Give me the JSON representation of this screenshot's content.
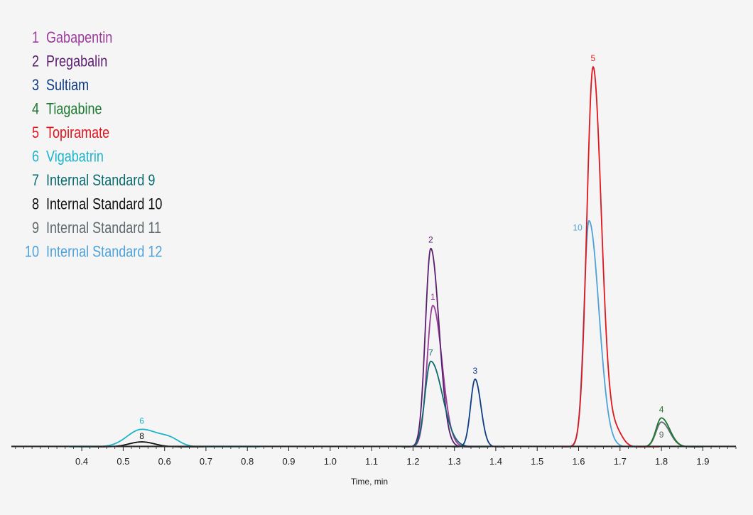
{
  "chart_data": {
    "type": "line",
    "title": "",
    "xlabel": "Time, min",
    "ylabel": "",
    "xlim": [
      0.23,
      1.98
    ],
    "ylim": [
      0,
      100
    ],
    "x_ticks": [
      "0.4",
      "0.5",
      "0.6",
      "0.7",
      "0.8",
      "0.9",
      "1.0",
      "1.1",
      "1.2",
      "1.3",
      "1.4",
      "1.5",
      "1.6",
      "1.7",
      "1.8",
      "1.9"
    ],
    "grid": false,
    "legend_position": "top-left",
    "legend": [
      {
        "number": "1",
        "name": "Gabapentin",
        "color": "#9b3d9b"
      },
      {
        "number": "2",
        "name": "Pregabalin",
        "color": "#5a1e6e"
      },
      {
        "number": "3",
        "name": "Sultiam",
        "color": "#0f3c82"
      },
      {
        "number": "4",
        "name": "Tiagabine",
        "color": "#1e7832"
      },
      {
        "number": "5",
        "name": "Topiramate",
        "color": "#e0161e"
      },
      {
        "number": "6",
        "name": "Vigabatrin",
        "color": "#1eb4c8"
      },
      {
        "number": "7",
        "name": "Internal Standard 9",
        "color": "#0a6a6e"
      },
      {
        "number": "8",
        "name": "Internal Standard 10",
        "color": "#111111"
      },
      {
        "number": "9",
        "name": "Internal Standard 11",
        "color": "#5f6a6e"
      },
      {
        "number": "10",
        "name": "Internal Standard 12",
        "color": "#4ea2d8"
      }
    ],
    "peaks": [
      {
        "label": "1",
        "x": 1.248,
        "height": 37.2,
        "color": "#9b3d9b"
      },
      {
        "label": "2",
        "x": 1.243,
        "height": 52.2,
        "color": "#5a1e6e"
      },
      {
        "label": "3",
        "x": 1.35,
        "height": 17.8,
        "color": "#0f3c82"
      },
      {
        "label": "4",
        "x": 1.8,
        "height": 7.6,
        "color": "#1e7832"
      },
      {
        "label": "5",
        "x": 1.635,
        "height": 100,
        "color": "#e0161e"
      },
      {
        "label": "6",
        "x": 0.545,
        "height": 4.6,
        "color": "#1eb4c8"
      },
      {
        "label": "7",
        "x": 1.243,
        "height": 22.5,
        "color": "#0a6a6e"
      },
      {
        "label": "8",
        "x": 0.545,
        "height": 1.3,
        "color": "#111111"
      },
      {
        "label": "9",
        "x": 1.8,
        "height": 6.5,
        "color": "#5f6a6e"
      },
      {
        "label": "10",
        "x": 1.625,
        "height": 59.5,
        "color": "#4ea2d8"
      }
    ]
  }
}
